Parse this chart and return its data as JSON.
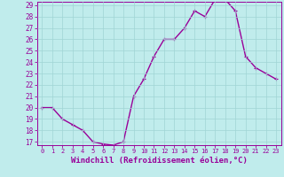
{
  "x": [
    0,
    1,
    2,
    3,
    4,
    5,
    6,
    7,
    8,
    9,
    10,
    11,
    12,
    13,
    14,
    15,
    16,
    17,
    18,
    19,
    20,
    21,
    22,
    23
  ],
  "y": [
    20.0,
    20.0,
    19.0,
    18.5,
    18.0,
    17.0,
    16.8,
    16.7,
    17.0,
    21.0,
    22.5,
    24.5,
    26.0,
    26.0,
    27.0,
    28.5,
    28.0,
    29.5,
    29.5,
    28.5,
    24.5,
    23.5,
    23.0,
    22.5
  ],
  "ylim_min": 17,
  "ylim_max": 29,
  "xlim_min": 0,
  "xlim_max": 23,
  "yticks": [
    17,
    18,
    19,
    20,
    21,
    22,
    23,
    24,
    25,
    26,
    27,
    28,
    29
  ],
  "xticks": [
    0,
    1,
    2,
    3,
    4,
    5,
    6,
    7,
    8,
    9,
    10,
    11,
    12,
    13,
    14,
    15,
    16,
    17,
    18,
    19,
    20,
    21,
    22,
    23
  ],
  "xlabel": "Windchill (Refroidissement éolien,°C)",
  "line_color": "#990099",
  "marker": "+",
  "bg_color": "#c0ecec",
  "grid_color": "#a0d4d4",
  "tick_color": "#990099",
  "font_size_xlabel": 6.5,
  "font_size_ytick": 5.5,
  "font_size_xtick": 5.0,
  "linewidth": 1.0,
  "markersize": 3,
  "markeredgewidth": 0.8
}
